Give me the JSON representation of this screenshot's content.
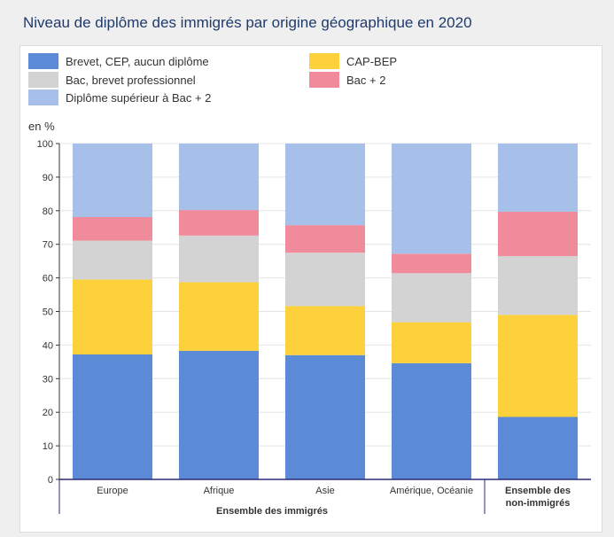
{
  "title": "Niveau de diplôme des immigrés par origine géographique en 2020",
  "chart_data": {
    "type": "bar",
    "stacked": true,
    "ylabel": "en %",
    "ylim": [
      0,
      100
    ],
    "yticks": [
      0,
      10,
      20,
      30,
      40,
      50,
      60,
      70,
      80,
      90,
      100
    ],
    "grid": true,
    "legend_position": "top",
    "categories": [
      "Europe",
      "Afrique",
      "Asie",
      "Amérique, Océanie",
      "Ensemble des non-immigrés"
    ],
    "category_label_lines": [
      [
        "Europe"
      ],
      [
        "Afrique"
      ],
      [
        "Asie"
      ],
      [
        "Amérique, Océanie"
      ],
      [
        "Ensemble des",
        "non-immigrés"
      ]
    ],
    "group_label": "Ensemble des immigrés",
    "series": [
      {
        "name": "Brevet, CEP, aucun diplôme",
        "color": "#5b8bd6",
        "values": [
          37.2,
          38.3,
          37.0,
          34.6,
          18.6
        ]
      },
      {
        "name": "CAP-BEP",
        "color": "#fdd13b",
        "values": [
          22.3,
          20.4,
          14.6,
          12.2,
          30.4
        ]
      },
      {
        "name": "Bac, brevet professionnel",
        "color": "#d3d3d3",
        "values": [
          11.6,
          13.9,
          15.9,
          14.6,
          17.5
        ]
      },
      {
        "name": "Bac + 2",
        "color": "#f08b9c",
        "values": [
          7.0,
          7.6,
          8.2,
          5.8,
          13.2
        ]
      },
      {
        "name": "Diplôme supérieur à Bac + 2",
        "color": "#a7c0ea",
        "values": [
          21.9,
          19.8,
          24.3,
          32.8,
          20.3
        ]
      }
    ]
  }
}
